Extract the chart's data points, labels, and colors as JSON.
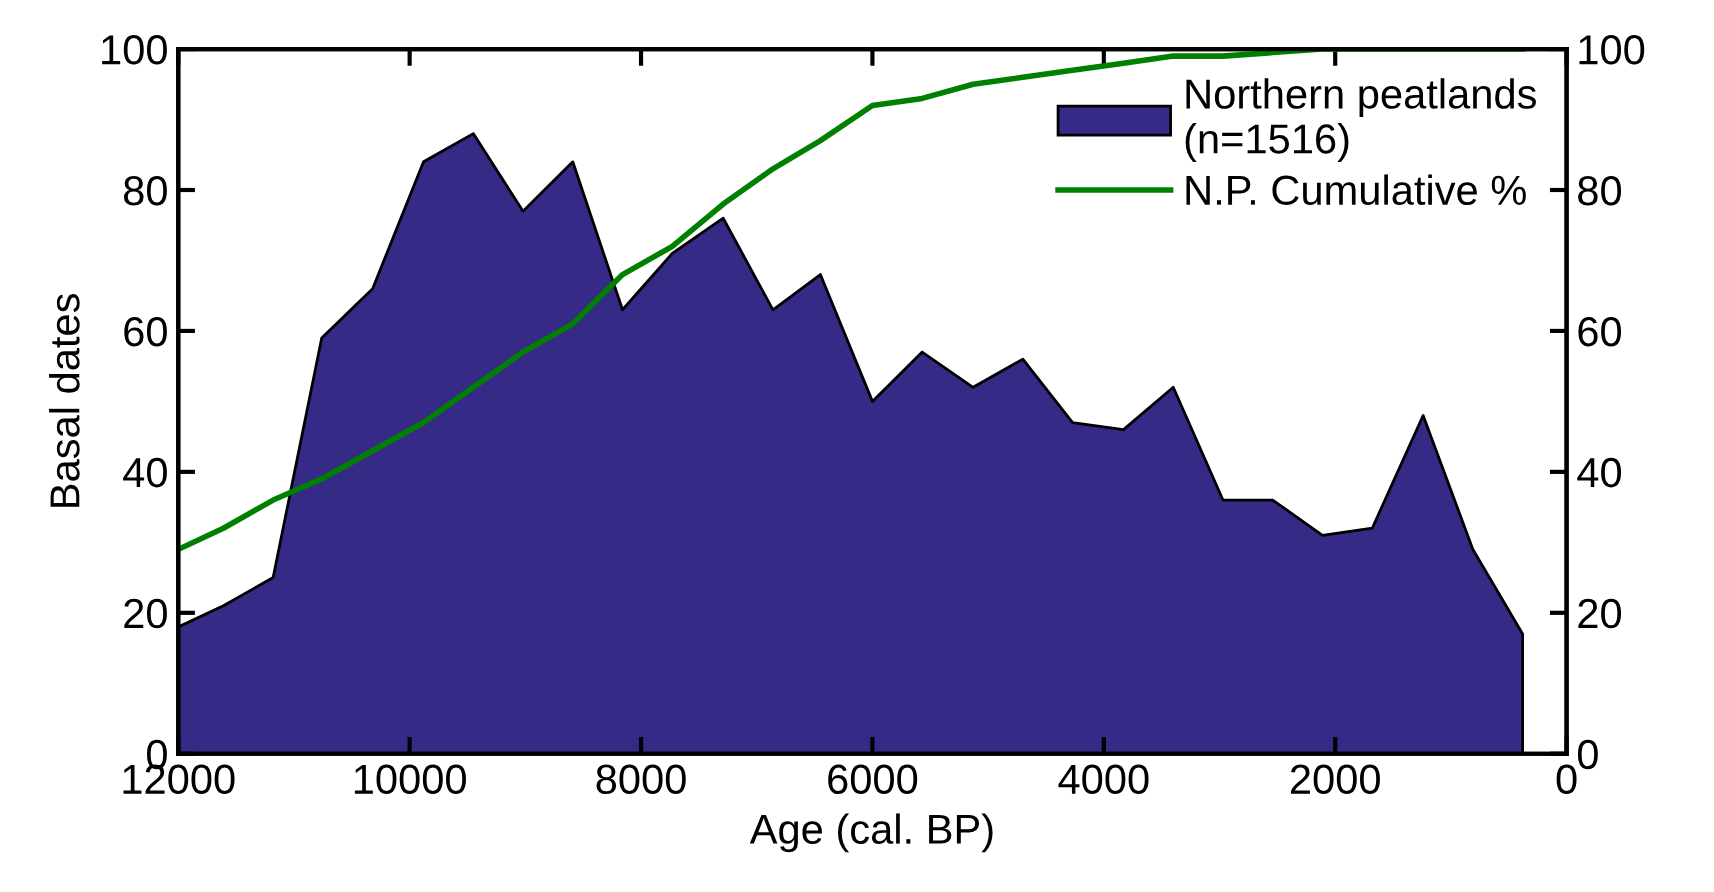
{
  "chart_data": {
    "type": "area",
    "xlabel": "Age (cal. BP)",
    "ylabel": "Basal dates",
    "x": [
      12000,
      11610,
      11180,
      10760,
      10320,
      9880,
      9450,
      9020,
      8590,
      8160,
      7730,
      7290,
      6860,
      6450,
      6000,
      5570,
      5130,
      4700,
      4270,
      3830,
      3400,
      2970,
      2540,
      2110,
      1680,
      1240,
      810,
      380
    ],
    "series": [
      {
        "name": "Northern peatlands\n(n=1516)",
        "color": "#352a86",
        "values": [
          18,
          21,
          25,
          59,
          66,
          84,
          88,
          77,
          84,
          63,
          71,
          76,
          63,
          68,
          50,
          57,
          52,
          56,
          47,
          46,
          52,
          36,
          36,
          31,
          32,
          48,
          29,
          17
        ]
      },
      {
        "name": "N.P. Cumulative %",
        "type": "line",
        "axis": "y2",
        "color": "#008000",
        "values": [
          29,
          32,
          36,
          39,
          43,
          47,
          52,
          57,
          61,
          68,
          72,
          78,
          83,
          87,
          92,
          93,
          95,
          96,
          97,
          98,
          99,
          99,
          99.5,
          100,
          100,
          100,
          100,
          100
        ]
      }
    ],
    "xlim": [
      12000,
      0
    ],
    "xticks": [
      12000,
      10000,
      8000,
      6000,
      4000,
      2000,
      0
    ],
    "ylim": [
      0,
      100
    ],
    "yticks": [
      0,
      20,
      40,
      60,
      80,
      100
    ],
    "y2lim": [
      0,
      100
    ],
    "y2ticks": [
      0,
      20,
      40,
      60,
      80,
      100
    ],
    "grid": false,
    "legend": "top right"
  }
}
